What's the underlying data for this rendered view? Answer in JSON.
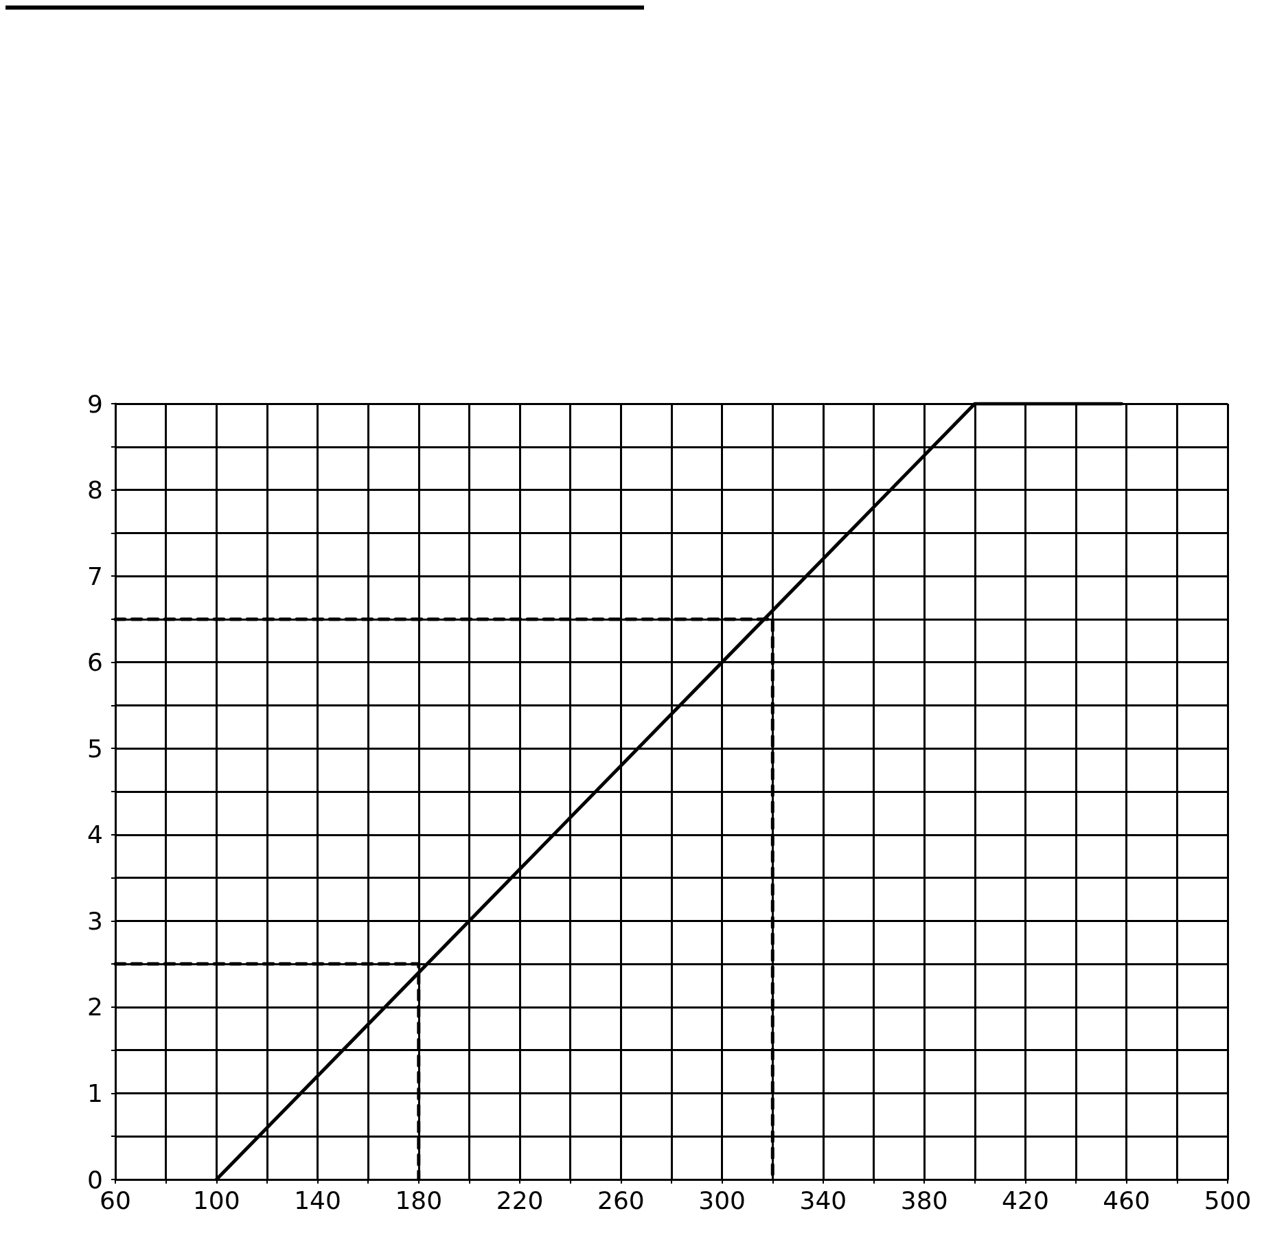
{
  "chart_data": {
    "type": "line",
    "grid": true,
    "marker": "none",
    "xlim": [
      60,
      500
    ],
    "ylim": [
      0,
      9
    ],
    "xticks": [
      60,
      {
        "value": 80,
        "label": null
      },
      100,
      {
        "value": 120,
        "label": null
      },
      140,
      {
        "value": 160,
        "label": null
      },
      180,
      {
        "value": 200,
        "label": null
      },
      220,
      {
        "value": 240,
        "label": null
      },
      260,
      {
        "value": 280,
        "label": null
      },
      300,
      {
        "value": 320,
        "label": null
      },
      340,
      {
        "value": 360,
        "label": null
      },
      380,
      {
        "value": 400,
        "label": null
      },
      420,
      {
        "value": 440,
        "label": null
      },
      460,
      {
        "value": 480,
        "label": null
      },
      500
    ],
    "yticks": [
      0,
      {
        "value": 0.5,
        "label": null
      },
      1,
      {
        "value": 1.5,
        "label": null
      },
      2,
      {
        "value": 2.5,
        "label": null
      },
      3,
      {
        "value": 3.5,
        "label": null
      },
      4,
      {
        "value": 4.5,
        "label": null
      },
      5,
      {
        "value": 5.5,
        "label": null
      },
      6,
      {
        "value": 6.5,
        "label": null
      },
      7,
      {
        "value": 7.5,
        "label": null
      },
      8,
      {
        "value": 8.5,
        "label": null
      },
      9
    ],
    "series": [
      {
        "color": "#000000",
        "line_style": "solid",
        "x": [
          100,
          400,
          458
        ],
        "values": [
          0,
          9,
          9
        ]
      },
      {
        "color": "#000000",
        "line_style": "dashed",
        "x": [
          60,
          320,
          320
        ],
        "values": [
          6.5,
          6.5,
          0
        ]
      },
      {
        "color": "#000000",
        "line_style": "dashed",
        "x": [
          60,
          180,
          180
        ],
        "values": [
          2.5,
          2.5,
          0
        ]
      }
    ]
  }
}
